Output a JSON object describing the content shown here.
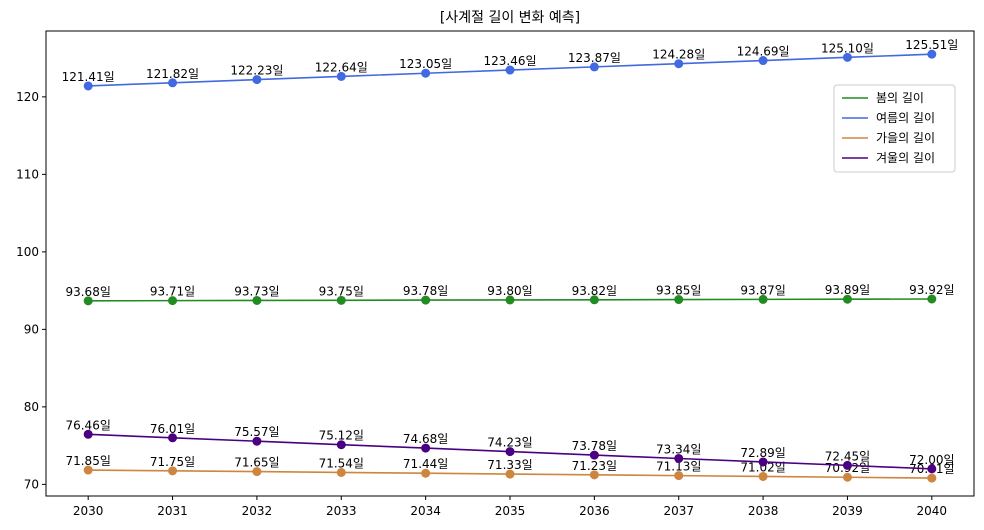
{
  "chart_data": {
    "type": "line",
    "title": "[사계절 길이 변화 예측]",
    "xlabel": "",
    "ylabel": "",
    "x": [
      2030,
      2031,
      2032,
      2033,
      2034,
      2035,
      2036,
      2037,
      2038,
      2039,
      2040
    ],
    "xlim": [
      2029.5,
      2040.5
    ],
    "ylim": [
      68.5,
      128.5
    ],
    "yticks": [
      70,
      80,
      90,
      100,
      110,
      120
    ],
    "grid": false,
    "legend_position": "upper right",
    "label_suffix": "일",
    "series": [
      {
        "name": "봄의 길이",
        "color": "#228B22",
        "values": [
          93.68,
          93.71,
          93.73,
          93.75,
          93.78,
          93.8,
          93.82,
          93.85,
          93.87,
          93.89,
          93.92
        ],
        "labels": [
          "93.68",
          "93.71",
          "93.73",
          "93.75",
          "93.78",
          "93.80",
          "93.82",
          "93.85",
          "93.87",
          "93.89",
          "93.92"
        ]
      },
      {
        "name": "여름의 길이",
        "color": "#4169E1",
        "values": [
          121.41,
          121.82,
          122.23,
          122.64,
          123.05,
          123.46,
          123.87,
          124.28,
          124.69,
          125.1,
          125.51
        ],
        "labels": [
          "121.41",
          "121.82",
          "122.23",
          "122.64",
          "123.05",
          "123.46",
          "123.87",
          "124.28",
          "124.69",
          "125.10",
          "125.51"
        ]
      },
      {
        "name": "가을의 길이",
        "color": "#CD853F",
        "values": [
          71.85,
          71.75,
          71.65,
          71.54,
          71.44,
          71.33,
          71.23,
          71.13,
          71.02,
          70.92,
          70.81
        ],
        "labels": [
          "71.85",
          "71.75",
          "71.65",
          "71.54",
          "71.44",
          "71.33",
          "71.23",
          "71.13",
          "71.02",
          "70.92",
          "70.81"
        ]
      },
      {
        "name": "겨울의 길이",
        "color": "#4B0082",
        "values": [
          76.46,
          76.01,
          75.57,
          75.12,
          74.68,
          74.23,
          73.78,
          73.34,
          72.89,
          72.45,
          72.0
        ],
        "labels": [
          "76.46",
          "76.01",
          "75.57",
          "75.12",
          "74.68",
          "74.23",
          "73.78",
          "73.34",
          "72.89",
          "72.45",
          "72.00"
        ]
      }
    ]
  }
}
